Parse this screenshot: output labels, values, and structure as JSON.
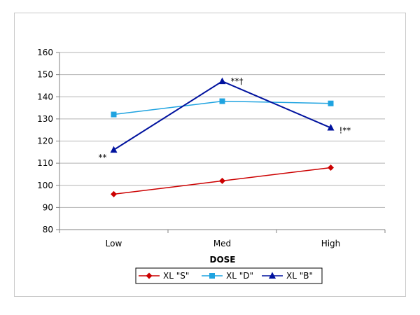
{
  "chart_data": {
    "type": "line",
    "title": "",
    "xlabel": "DOSE",
    "ylabel": "",
    "categories": [
      "Low",
      "Med",
      "High"
    ],
    "ylim": [
      80,
      160
    ],
    "yticks": [
      80,
      90,
      100,
      110,
      120,
      130,
      140,
      150,
      160
    ],
    "grid": true,
    "legend_position": "bottom",
    "series": [
      {
        "name": "XL \"S\"",
        "values": [
          96,
          102,
          108
        ],
        "color": "#cc0000",
        "marker": "diamond"
      },
      {
        "name": "XL \"D\"",
        "values": [
          132,
          138,
          137
        ],
        "color": "#1fa3e0",
        "marker": "square"
      },
      {
        "name": "XL \"B\"",
        "values": [
          116,
          147,
          126
        ],
        "color": "#00129e",
        "marker": "triangle"
      }
    ],
    "annotations": [
      {
        "text": "**",
        "category": "Low",
        "series": "XL \"B\""
      },
      {
        "text": "**†",
        "category": "Med",
        "series": "XL \"B\""
      },
      {
        "text": "!**",
        "category": "High",
        "series": "XL \"B\""
      }
    ]
  }
}
